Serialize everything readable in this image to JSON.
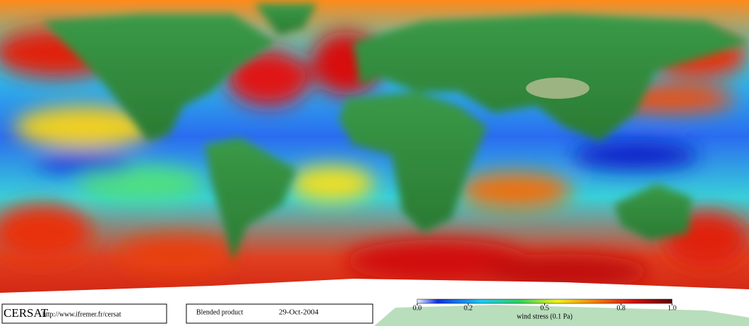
{
  "header": {
    "logo": "CERSAT",
    "url": "http://www.ifremer.fr/cersat",
    "product": "Blended product",
    "date": "29-Oct-2004"
  },
  "colorbar": {
    "lim": [
      0,
      1
    ],
    "ticks": [
      {
        "value": 0,
        "label": "0.0"
      },
      0.2,
      0.5,
      0.8,
      {
        "value": 1,
        "label": "1.0"
      }
    ],
    "label": "wind stress (0.1 Pa)"
  }
}
